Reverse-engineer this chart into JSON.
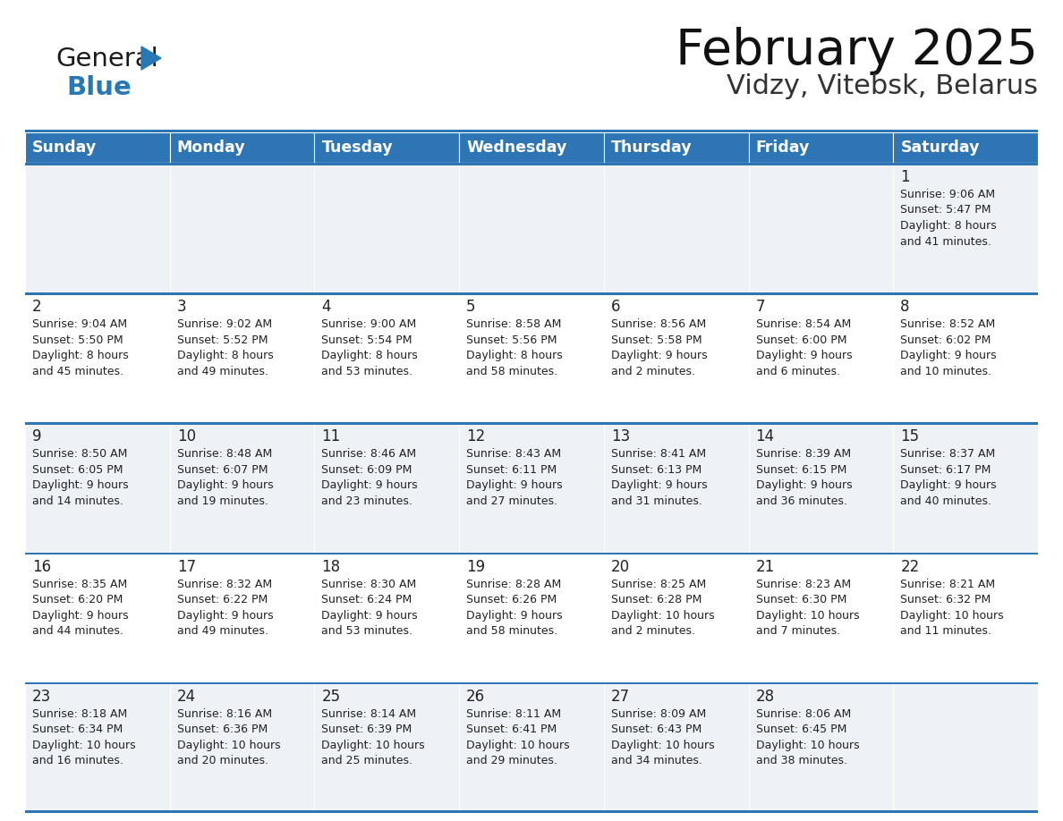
{
  "title": "February 2025",
  "subtitle": "Vidzy, Vitebsk, Belarus",
  "header_bg": "#2e75b6",
  "header_text": "#ffffff",
  "cell_bg_odd": "#eef2f7",
  "cell_bg_even": "#ffffff",
  "text_color": "#222222",
  "day_number_color": "#222222",
  "line_color": "#2e75b6",
  "logo_black": "#1a1a1a",
  "logo_blue": "#2878b5",
  "days_of_week": [
    "Sunday",
    "Monday",
    "Tuesday",
    "Wednesday",
    "Thursday",
    "Friday",
    "Saturday"
  ],
  "calendar_data": [
    [
      null,
      null,
      null,
      null,
      null,
      null,
      {
        "day": "1",
        "sunrise": "9:06 AM",
        "sunset": "5:47 PM",
        "daylight": "8 hours",
        "daylight2": "and 41 minutes."
      }
    ],
    [
      {
        "day": "2",
        "sunrise": "9:04 AM",
        "sunset": "5:50 PM",
        "daylight": "8 hours",
        "daylight2": "and 45 minutes."
      },
      {
        "day": "3",
        "sunrise": "9:02 AM",
        "sunset": "5:52 PM",
        "daylight": "8 hours",
        "daylight2": "and 49 minutes."
      },
      {
        "day": "4",
        "sunrise": "9:00 AM",
        "sunset": "5:54 PM",
        "daylight": "8 hours",
        "daylight2": "and 53 minutes."
      },
      {
        "day": "5",
        "sunrise": "8:58 AM",
        "sunset": "5:56 PM",
        "daylight": "8 hours",
        "daylight2": "and 58 minutes."
      },
      {
        "day": "6",
        "sunrise": "8:56 AM",
        "sunset": "5:58 PM",
        "daylight": "9 hours",
        "daylight2": "and 2 minutes."
      },
      {
        "day": "7",
        "sunrise": "8:54 AM",
        "sunset": "6:00 PM",
        "daylight": "9 hours",
        "daylight2": "and 6 minutes."
      },
      {
        "day": "8",
        "sunrise": "8:52 AM",
        "sunset": "6:02 PM",
        "daylight": "9 hours",
        "daylight2": "and 10 minutes."
      }
    ],
    [
      {
        "day": "9",
        "sunrise": "8:50 AM",
        "sunset": "6:05 PM",
        "daylight": "9 hours",
        "daylight2": "and 14 minutes."
      },
      {
        "day": "10",
        "sunrise": "8:48 AM",
        "sunset": "6:07 PM",
        "daylight": "9 hours",
        "daylight2": "and 19 minutes."
      },
      {
        "day": "11",
        "sunrise": "8:46 AM",
        "sunset": "6:09 PM",
        "daylight": "9 hours",
        "daylight2": "and 23 minutes."
      },
      {
        "day": "12",
        "sunrise": "8:43 AM",
        "sunset": "6:11 PM",
        "daylight": "9 hours",
        "daylight2": "and 27 minutes."
      },
      {
        "day": "13",
        "sunrise": "8:41 AM",
        "sunset": "6:13 PM",
        "daylight": "9 hours",
        "daylight2": "and 31 minutes."
      },
      {
        "day": "14",
        "sunrise": "8:39 AM",
        "sunset": "6:15 PM",
        "daylight": "9 hours",
        "daylight2": "and 36 minutes."
      },
      {
        "day": "15",
        "sunrise": "8:37 AM",
        "sunset": "6:17 PM",
        "daylight": "9 hours",
        "daylight2": "and 40 minutes."
      }
    ],
    [
      {
        "day": "16",
        "sunrise": "8:35 AM",
        "sunset": "6:20 PM",
        "daylight": "9 hours",
        "daylight2": "and 44 minutes."
      },
      {
        "day": "17",
        "sunrise": "8:32 AM",
        "sunset": "6:22 PM",
        "daylight": "9 hours",
        "daylight2": "and 49 minutes."
      },
      {
        "day": "18",
        "sunrise": "8:30 AM",
        "sunset": "6:24 PM",
        "daylight": "9 hours",
        "daylight2": "and 53 minutes."
      },
      {
        "day": "19",
        "sunrise": "8:28 AM",
        "sunset": "6:26 PM",
        "daylight": "9 hours",
        "daylight2": "and 58 minutes."
      },
      {
        "day": "20",
        "sunrise": "8:25 AM",
        "sunset": "6:28 PM",
        "daylight": "10 hours",
        "daylight2": "and 2 minutes."
      },
      {
        "day": "21",
        "sunrise": "8:23 AM",
        "sunset": "6:30 PM",
        "daylight": "10 hours",
        "daylight2": "and 7 minutes."
      },
      {
        "day": "22",
        "sunrise": "8:21 AM",
        "sunset": "6:32 PM",
        "daylight": "10 hours",
        "daylight2": "and 11 minutes."
      }
    ],
    [
      {
        "day": "23",
        "sunrise": "8:18 AM",
        "sunset": "6:34 PM",
        "daylight": "10 hours",
        "daylight2": "and 16 minutes."
      },
      {
        "day": "24",
        "sunrise": "8:16 AM",
        "sunset": "6:36 PM",
        "daylight": "10 hours",
        "daylight2": "and 20 minutes."
      },
      {
        "day": "25",
        "sunrise": "8:14 AM",
        "sunset": "6:39 PM",
        "daylight": "10 hours",
        "daylight2": "and 25 minutes."
      },
      {
        "day": "26",
        "sunrise": "8:11 AM",
        "sunset": "6:41 PM",
        "daylight": "10 hours",
        "daylight2": "and 29 minutes."
      },
      {
        "day": "27",
        "sunrise": "8:09 AM",
        "sunset": "6:43 PM",
        "daylight": "10 hours",
        "daylight2": "and 34 minutes."
      },
      {
        "day": "28",
        "sunrise": "8:06 AM",
        "sunset": "6:45 PM",
        "daylight": "10 hours",
        "daylight2": "and 38 minutes."
      },
      null
    ]
  ]
}
